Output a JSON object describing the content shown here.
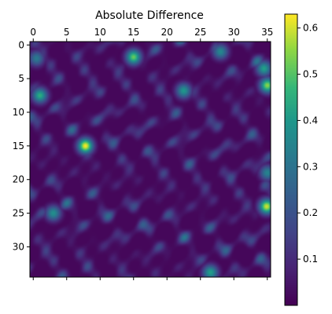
{
  "chart_data": {
    "type": "heatmap",
    "title": "Absolute Difference",
    "xlabel": "",
    "ylabel": "",
    "x_range": [
      -0.5,
      35.5
    ],
    "y_range": [
      -0.5,
      34.5
    ],
    "x_ticks": [
      0,
      5,
      10,
      15,
      20,
      25,
      30,
      35
    ],
    "y_ticks": [
      0,
      5,
      10,
      15,
      20,
      25,
      30
    ],
    "x_tick_labels": [
      "0",
      "5",
      "10",
      "15",
      "20",
      "25",
      "30",
      "35"
    ],
    "y_tick_labels": [
      "0",
      "5",
      "10",
      "15",
      "20",
      "25",
      "30"
    ],
    "x_axis_position": "top",
    "colormap": "viridis",
    "colorbar": {
      "range": [
        0.0,
        0.63
      ],
      "ticks": [
        0.1,
        0.2,
        0.3,
        0.4,
        0.5,
        0.6
      ],
      "tick_labels": [
        "0.1",
        "0.2",
        "0.3",
        "0.4",
        "0.5",
        "0.6"
      ]
    },
    "grid": false,
    "peaks": [
      {
        "x": 7.8,
        "y": 15.0,
        "value": 0.63
      },
      {
        "x": 34.9,
        "y": 24.0,
        "value": 0.6
      },
      {
        "x": 15.0,
        "y": 1.8,
        "value": 0.52
      },
      {
        "x": 35.0,
        "y": 6.0,
        "value": 0.55
      },
      {
        "x": 1.0,
        "y": 7.5,
        "value": 0.45
      },
      {
        "x": 34.5,
        "y": 3.5,
        "value": 0.42
      },
      {
        "x": 22.5,
        "y": 6.8,
        "value": 0.4
      },
      {
        "x": 26.5,
        "y": 33.8,
        "value": 0.42
      },
      {
        "x": 3.0,
        "y": 25.0,
        "value": 0.38
      },
      {
        "x": 35.0,
        "y": 19.0,
        "value": 0.35
      },
      {
        "x": 28.0,
        "y": 1.0,
        "value": 0.36
      },
      {
        "x": 0.5,
        "y": 2.0,
        "value": 0.32
      }
    ]
  }
}
